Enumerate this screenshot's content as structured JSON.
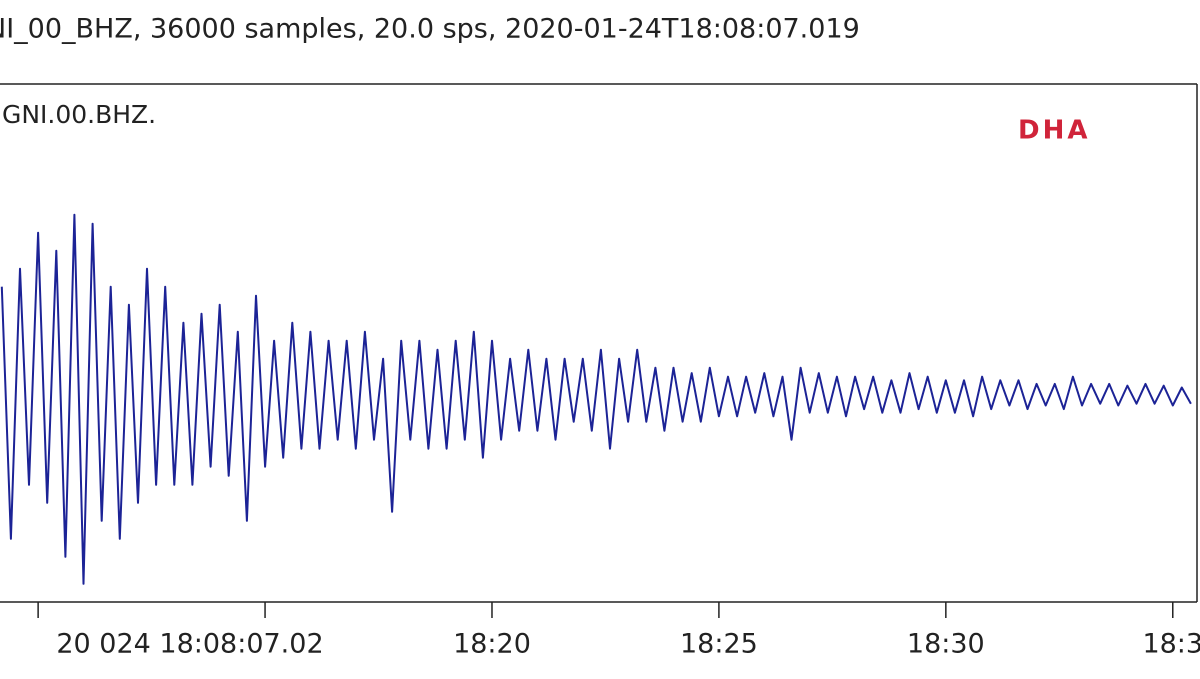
{
  "chart_data": {
    "type": "line",
    "title": "NI_00_BHZ, 36000 samples, 20.0 sps, 2020-01-24T18:08:07.019",
    "trace_label": ".GNI.00.BHZ.",
    "watermark": "DHA",
    "start_label": "20 024 18:08:07.02",
    "xlim": [
      9.16,
      35.6
    ],
    "ylim": [
      -1.14,
      1.72
    ],
    "xticks": [
      10,
      15,
      {
        "value": 20,
        "label": "18:20"
      },
      {
        "value": 25,
        "label": "18:25"
      },
      {
        "value": 30,
        "label": "18:30"
      },
      {
        "value": 35,
        "label": "18:3"
      }
    ],
    "x": [
      9.2,
      9.4,
      9.6,
      9.8,
      10,
      10.2,
      10.4,
      10.6,
      10.8,
      11,
      11.2,
      11.4,
      11.6,
      11.8,
      12,
      12.2,
      12.4,
      12.6,
      12.8,
      13,
      13.2,
      13.4,
      13.6,
      13.8,
      14,
      14.2,
      14.4,
      14.6,
      14.8,
      15,
      15.2,
      15.4,
      15.6,
      15.8,
      16,
      16.2,
      16.4,
      16.6,
      16.8,
      17,
      17.2,
      17.4,
      17.6,
      17.8,
      18,
      18.2,
      18.4,
      18.6,
      18.8,
      19,
      19.2,
      19.4,
      19.6,
      19.8,
      20,
      20.2,
      20.4,
      20.6,
      20.8,
      21,
      21.2,
      21.4,
      21.6,
      21.8,
      22,
      22.2,
      22.4,
      22.6,
      22.8,
      23,
      23.2,
      23.4,
      23.6,
      23.8,
      24,
      24.2,
      24.4,
      24.6,
      24.8,
      25,
      25.2,
      25.4,
      25.6,
      25.8,
      26,
      26.2,
      26.4,
      26.6,
      26.8,
      27,
      27.2,
      27.4,
      27.6,
      27.8,
      28,
      28.2,
      28.4,
      28.6,
      28.8,
      29,
      29.2,
      29.4,
      29.6,
      29.8,
      30,
      30.2,
      30.4,
      30.6,
      30.8,
      31,
      31.2,
      31.4,
      31.6,
      31.8,
      32,
      32.2,
      32.4,
      32.6,
      32.8,
      33,
      33.2,
      33.4,
      33.6,
      33.8,
      34,
      34.2,
      34.4,
      34.6,
      34.8,
      35,
      35.2,
      35.4
    ],
    "series": [
      {
        "color": "#1c2396",
        "values": [
          0.6,
          -0.8,
          0.7,
          -0.5,
          0.9,
          -0.6,
          0.8,
          -0.9,
          1.0,
          -1.05,
          0.95,
          -0.7,
          0.6,
          -0.8,
          0.5,
          -0.6,
          0.7,
          -0.5,
          0.6,
          -0.5,
          0.4,
          -0.5,
          0.45,
          -0.4,
          0.5,
          -0.45,
          0.35,
          -0.7,
          0.55,
          -0.4,
          0.3,
          -0.35,
          0.4,
          -0.3,
          0.35,
          -0.3,
          0.3,
          -0.25,
          0.3,
          -0.3,
          0.35,
          -0.25,
          0.2,
          -0.65,
          0.3,
          -0.25,
          0.3,
          -0.3,
          0.25,
          -0.3,
          0.3,
          -0.25,
          0.35,
          -0.35,
          0.3,
          -0.25,
          0.2,
          -0.2,
          0.25,
          -0.2,
          0.2,
          -0.25,
          0.2,
          -0.15,
          0.2,
          -0.2,
          0.25,
          -0.3,
          0.2,
          -0.15,
          0.25,
          -0.15,
          0.15,
          -0.2,
          0.15,
          -0.15,
          0.12,
          -0.15,
          0.15,
          -0.12,
          0.1,
          -0.12,
          0.1,
          -0.1,
          0.12,
          -0.12,
          0.1,
          -0.25,
          0.15,
          -0.1,
          0.12,
          -0.1,
          0.1,
          -0.12,
          0.1,
          -0.08,
          0.1,
          -0.1,
          0.08,
          -0.1,
          0.12,
          -0.08,
          0.1,
          -0.1,
          0.08,
          -0.1,
          0.08,
          -0.12,
          0.1,
          -0.08,
          0.08,
          -0.06,
          0.08,
          -0.08,
          0.06,
          -0.06,
          0.06,
          -0.08,
          0.1,
          -0.06,
          0.06,
          -0.05,
          0.06,
          -0.06,
          0.05,
          -0.05,
          0.06,
          -0.05,
          0.05,
          -0.06,
          0.04,
          -0.05
        ]
      }
    ]
  }
}
